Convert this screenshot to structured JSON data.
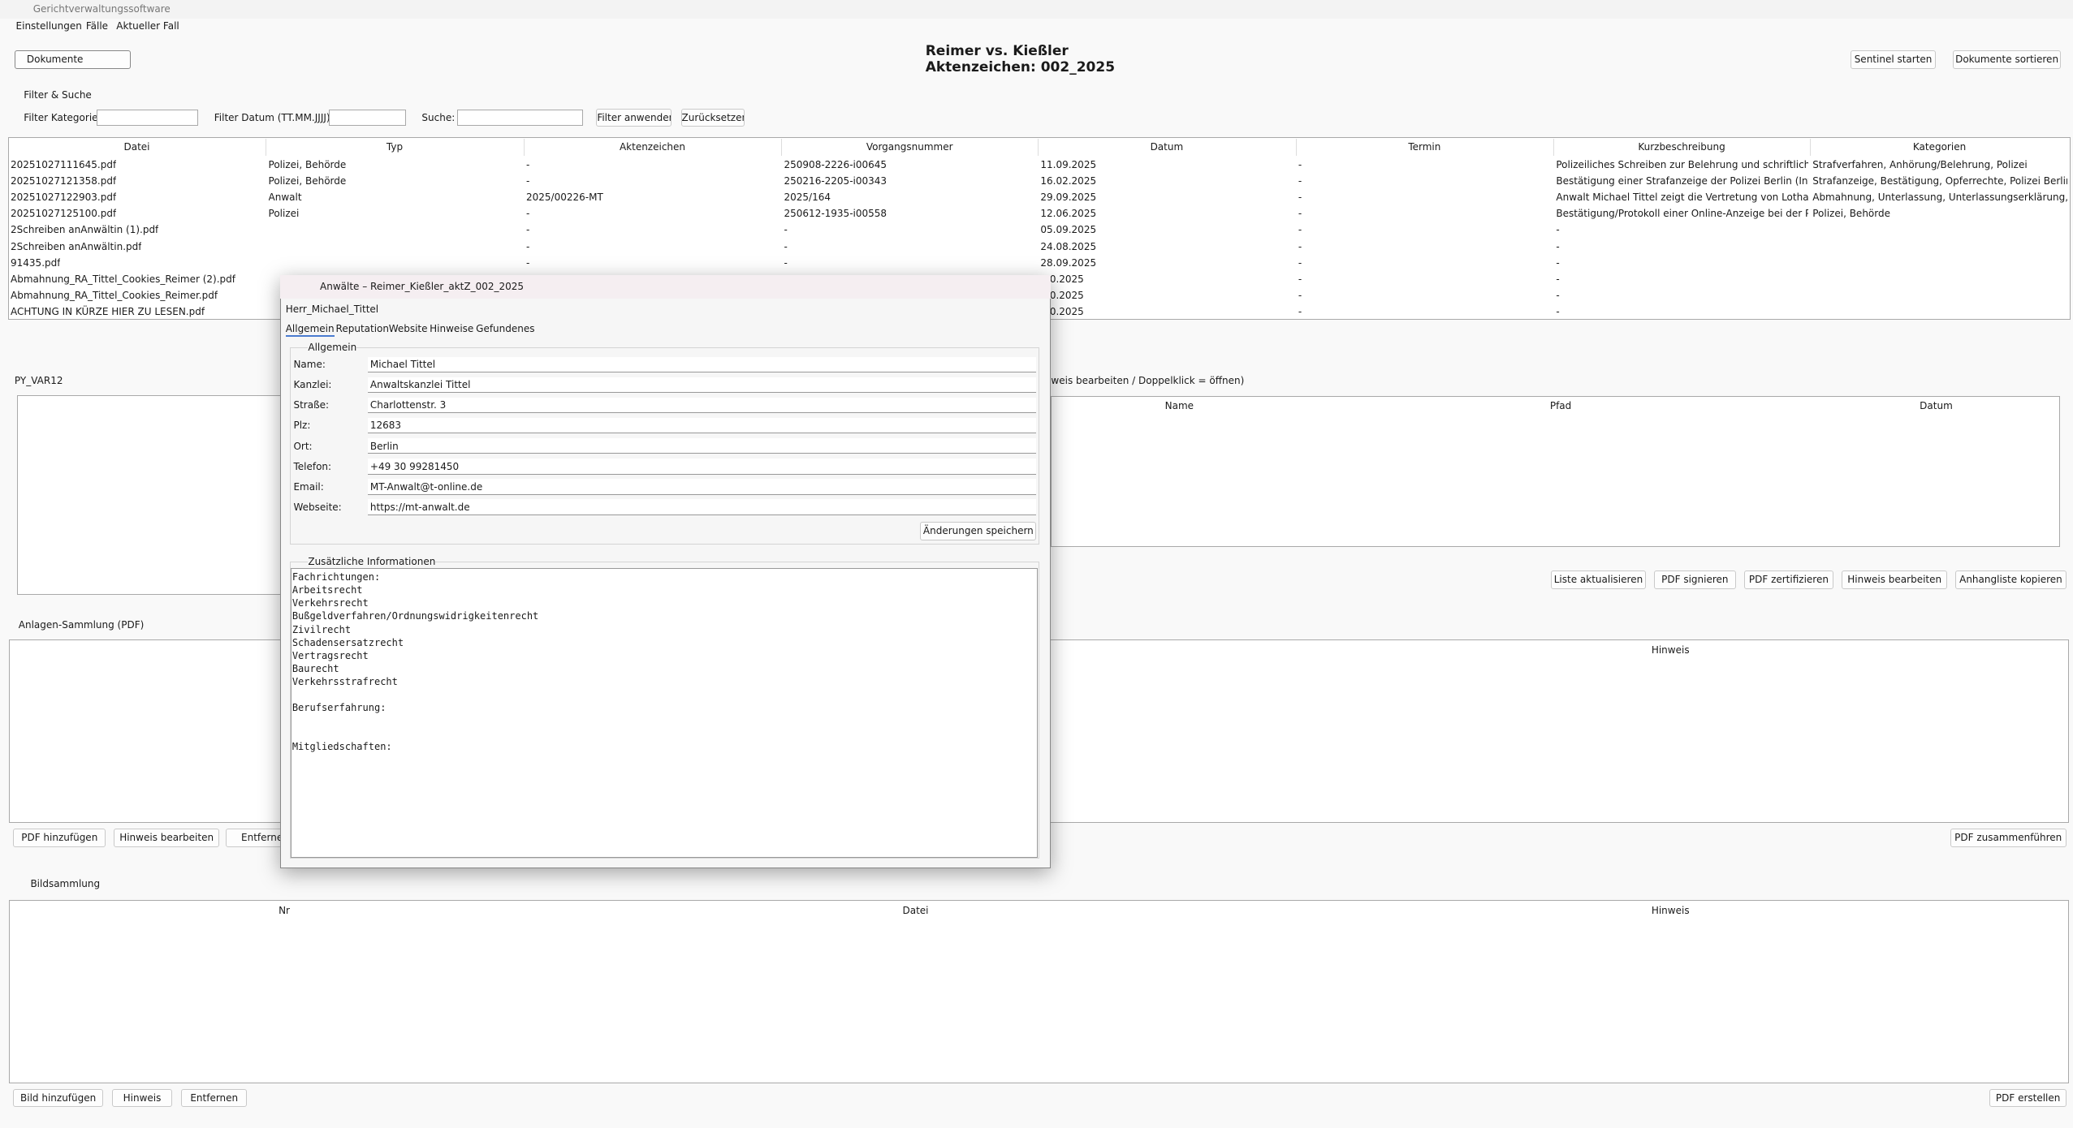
{
  "window": {
    "title": "Gerichtverwaltungssoftware"
  },
  "menu": [
    "Einstellungen",
    "Fälle",
    "Aktueller Fall"
  ],
  "toolbar": {
    "view_select": "Dokumente",
    "case_title": "Reimer vs. Kießler",
    "case_number": "Aktenzeichen: 002_2025",
    "buttons": [
      "Sentinel starten",
      "Dokumente sortieren"
    ]
  },
  "filter": {
    "title": "Filter & Suche",
    "labels": [
      "Filter Kategorie:",
      "Filter Datum (TT.MM.JJJJ):",
      "Suche:"
    ],
    "buttons": [
      "Filter anwenden",
      "Zurücksetzen"
    ]
  },
  "documents": {
    "columns": [
      "Datei",
      "Typ",
      "Aktenzeichen",
      "Vorgangsnummer",
      "Datum",
      "Termin",
      "Kurzbeschreibung",
      "Kategorien"
    ],
    "rows": [
      [
        "20251027111645.pdf",
        "Polizei, Behörde",
        "-",
        "250908-2226-i00645",
        "11.09.2025",
        "-",
        "Polizeiliches Schreiben zur Belehrung und schriftlichen Äuß",
        "Strafverfahren, Anhörung/Belehrung, Polizei"
      ],
      [
        "20251027121358.pdf",
        "Polizei, Behörde",
        "-",
        "250216-2205-i00343",
        "16.02.2025",
        "-",
        "Bestätigung einer Strafanzeige der Polizei Berlin (Internetw",
        "Strafanzeige, Bestätigung, Opferrechte, Polizei Berlin"
      ],
      [
        "20251027122903.pdf",
        "Anwalt",
        "2025/00226-MT",
        "2025/164",
        "29.09.2025",
        "-",
        "Anwalt Michael Tittel zeigt die Vertretung von Lothar Kießl",
        "Abmahnung, Unterlassung, Unterlassungserklärung, Koster"
      ],
      [
        "20251027125100.pdf",
        "Polizei",
        "-",
        "250612-1935-i00558",
        "12.06.2025",
        "-",
        "Bestätigung/Protokoll einer Online-Anzeige bei der Polizei",
        "Polizei, Behörde"
      ],
      [
        "2Schreiben anAnwältin (1).pdf",
        null,
        "-",
        "-",
        "05.09.2025",
        "-",
        "-",
        null
      ],
      [
        "2Schreiben anAnwältin.pdf",
        null,
        "-",
        "-",
        "24.08.2025",
        "-",
        "-",
        null
      ],
      [
        "91435.pdf",
        null,
        "-",
        "-",
        "28.09.2025",
        "-",
        "-",
        null
      ],
      [
        "Abmahnung_RA_Tittel_Cookies_Reimer (2).pdf",
        null,
        null,
        null,
        ".10.2025",
        "-",
        "-",
        null
      ],
      [
        "Abmahnung_RA_Tittel_Cookies_Reimer.pdf",
        null,
        null,
        null,
        ".10.2025",
        "-",
        "-",
        null
      ],
      [
        "ACHTUNG IN KÜRZE HIER ZU LESEN.pdf",
        null,
        null,
        null,
        ".10.2025",
        "-",
        "-",
        null
      ]
    ]
  },
  "attachments": {
    "label": "PY_VAR12",
    "hint": "weis bearbeiten / Doppelklick = öffnen)",
    "columns": [
      "Name",
      "Pfad",
      "Datum"
    ],
    "buttons": [
      "Liste aktualisieren",
      "PDF signieren",
      "PDF zertifizieren",
      "Hinweis bearbeiten",
      "Anhangliste kopieren"
    ]
  },
  "pdf_collection": {
    "title": "Anlagen-Sammlung (PDF)",
    "columns": [
      "Hinweis"
    ],
    "buttons": [
      "PDF hinzufügen",
      "Hinweis bearbeiten",
      "Entfernen",
      "PDF zusammenführen"
    ]
  },
  "image_collection": {
    "title": "Bildsammlung",
    "columns": [
      "Nr",
      "Datei",
      "Hinweis"
    ],
    "buttons": [
      "Bild hinzufügen",
      "Hinweis",
      "Entfernen",
      "PDF erstellen"
    ]
  },
  "dialog": {
    "title": "Anwälte – Reimer_Kießler_aktZ_002_2025",
    "person": "Herr_Michael_Tittel",
    "tabs": [
      "Allgemein",
      "Reputation",
      "Website",
      "Hinweise",
      "Gefundenes"
    ],
    "group": "Allgemein",
    "fields": [
      {
        "label": "Name:",
        "value": "Michael Tittel"
      },
      {
        "label": "Kanzlei:",
        "value": "Anwaltskanzlei Tittel"
      },
      {
        "label": "Straße:",
        "value": "Charlottenstr. 3"
      },
      {
        "label": "Plz:",
        "value": "12683"
      },
      {
        "label": "Ort:",
        "value": "Berlin"
      },
      {
        "label": "Telefon:",
        "value": "+49 30 99281450"
      },
      {
        "label": "Email:",
        "value": "MT-Anwalt@t-online.de"
      },
      {
        "label": "Webseite:",
        "value": "https://mt-anwalt.de"
      }
    ],
    "save_button": "Änderungen speichern",
    "info_title": "Zusätzliche Informationen",
    "info_lines": [
      "Fachrichtungen:",
      "Arbeitsrecht",
      "Verkehrsrecht",
      "Bußgeldverfahren/Ordnungswidrigkeitenrecht",
      "Zivilrecht",
      "Schadensersatzrecht",
      "Vertragsrecht",
      "Baurecht",
      "Verkehrsstrafrecht",
      null,
      "Berufserfahrung:",
      null,
      null,
      "Mitgliedschaften:"
    ]
  }
}
